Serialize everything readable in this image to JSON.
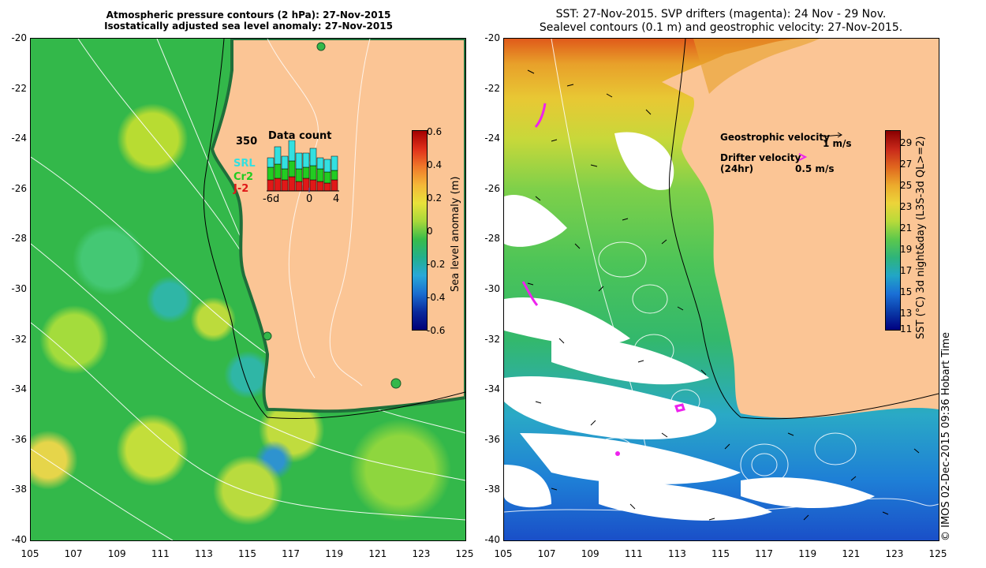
{
  "left_panel": {
    "title_line1": "Atmospheric pressure contours (2 hPa): 27-Nov-2015",
    "title_line2": "Isostatically adjusted sea level anomaly: 27-Nov-2015",
    "colorbar_label": "Sea level anomaly (m)",
    "colorbar_ticks": [
      "0.6",
      "0.4",
      "0.2",
      "0",
      "-0.2",
      "-0.4",
      "-0.6"
    ],
    "inset": {
      "title": "Data count",
      "max_label": "350",
      "legend": [
        {
          "label": "SRL",
          "color": "#33e0e0"
        },
        {
          "label": "Cr2",
          "color": "#22cc22"
        },
        {
          "label": "J-2",
          "color": "#e01818"
        }
      ],
      "x_ticks": [
        "-6d",
        "0",
        "4"
      ]
    }
  },
  "right_panel": {
    "title_line1": "SST: 27-Nov-2015. SVP drifters (magenta): 24 Nov - 29 Nov.",
    "title_line2": "Sealevel contours (0.1 m) and geostrophic velocity: 27-Nov-2015.",
    "colorbar_label": "SST (°C) 3d night&day (L3S-3d QL>=2)",
    "colorbar_ticks": [
      "29",
      "27",
      "25",
      "23",
      "21",
      "19",
      "17",
      "15",
      "13",
      "11"
    ],
    "legend": {
      "geo_label": "Geostrophic velocity",
      "geo_scale": "1 m/s",
      "drifter_label": "Drifter velocity",
      "drifter_sub": "(24hr)",
      "drifter_scale": "0.5 m/s"
    }
  },
  "axes": {
    "y_ticks": [
      "-20",
      "-22",
      "-24",
      "-26",
      "-28",
      "-30",
      "-32",
      "-34",
      "-36",
      "-38",
      "-40"
    ],
    "x_ticks": [
      "105",
      "107",
      "109",
      "111",
      "113",
      "115",
      "117",
      "119",
      "121",
      "123",
      "125"
    ]
  },
  "credit": "© IMOS 02-Dec-2015 09:36 Hobart Time",
  "colors": {
    "land": "#fbc595",
    "drifter": "#ee22ee"
  }
}
